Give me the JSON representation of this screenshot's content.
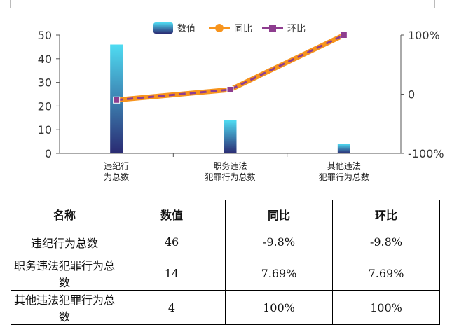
{
  "chart_data": {
    "type": "bar",
    "categories": [
      [
        "违纪行",
        "为总数"
      ],
      [
        "职务违法",
        "犯罪行为总数"
      ],
      [
        "其他违法",
        "犯罪行为总数"
      ]
    ],
    "series": [
      {
        "name": "数值",
        "type": "bar",
        "axis": "left",
        "values": [
          46,
          14,
          4
        ]
      },
      {
        "name": "同比",
        "type": "line",
        "axis": "right",
        "values": [
          -9.8,
          7.69,
          100
        ]
      },
      {
        "name": "环比",
        "type": "line",
        "axis": "right",
        "values": [
          -9.8,
          7.69,
          100
        ]
      }
    ],
    "y_left": {
      "min": 0,
      "max": 50,
      "ticks": [
        "0",
        "10",
        "20",
        "30",
        "40",
        "50"
      ]
    },
    "y_right": {
      "min": -100,
      "max": 100,
      "ticks": [
        "-100%",
        "0",
        "100%"
      ]
    },
    "legend_placement": "top-center",
    "grid": false,
    "colors": {
      "bar_top": "#4fdcf2",
      "bar_bottom": "#2a2a72",
      "tongbi": "#f7941d",
      "huanbi": "#8e3d8f"
    }
  },
  "table": {
    "headers": [
      "名称",
      "数值",
      "同比",
      "环比"
    ],
    "rows": [
      [
        "违纪行为总数",
        "46",
        "-9.8%",
        "-9.8%"
      ],
      [
        "职务违法犯罪行为总数",
        "14",
        "7.69%",
        "7.69%"
      ],
      [
        "其他违法犯罪行为总数",
        "4",
        "100%",
        "100%"
      ]
    ]
  }
}
